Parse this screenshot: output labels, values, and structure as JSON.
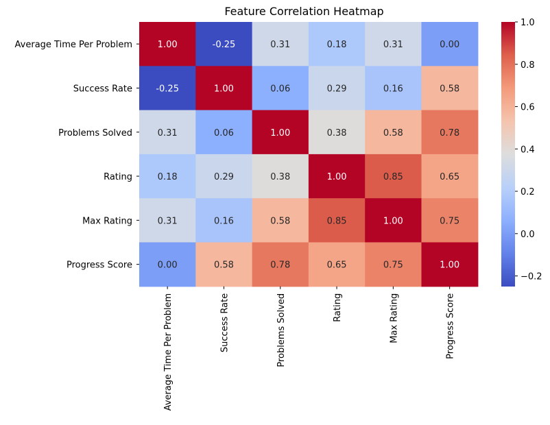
{
  "chart_data": {
    "type": "heatmap",
    "title": "Feature Correlation Heatmap",
    "xlabel": "",
    "ylabel": "",
    "labels": [
      "Average Time Per Problem",
      "Success Rate",
      "Problems Solved",
      "Rating",
      "Max Rating",
      "Progress Score"
    ],
    "values": [
      [
        1.0,
        -0.25,
        0.31,
        0.18,
        0.31,
        0.0
      ],
      [
        -0.25,
        1.0,
        0.06,
        0.29,
        0.16,
        0.58
      ],
      [
        0.31,
        0.06,
        1.0,
        0.38,
        0.58,
        0.78
      ],
      [
        0.18,
        0.29,
        0.38,
        1.0,
        0.85,
        0.65
      ],
      [
        0.31,
        0.16,
        0.58,
        0.85,
        1.0,
        0.75
      ],
      [
        0.0,
        0.58,
        0.78,
        0.65,
        0.75,
        1.0
      ]
    ],
    "cell_labels": [
      [
        "1.00",
        "-0.25",
        "0.31",
        "0.18",
        "0.31",
        "0.00"
      ],
      [
        "-0.25",
        "1.00",
        "0.06",
        "0.29",
        "0.16",
        "0.58"
      ],
      [
        "0.31",
        "0.06",
        "1.00",
        "0.38",
        "0.58",
        "0.78"
      ],
      [
        "0.18",
        "0.29",
        "0.38",
        "1.00",
        "0.85",
        "0.65"
      ],
      [
        "0.31",
        "0.16",
        "0.58",
        "0.85",
        "1.00",
        "0.75"
      ],
      [
        "0.00",
        "0.58",
        "0.78",
        "0.65",
        "0.75",
        "1.00"
      ]
    ],
    "colormap": "coolwarm",
    "vmin": -0.25,
    "vmax": 1.0,
    "colorbar": {
      "ticks": [
        -0.2,
        0.0,
        0.2,
        0.4,
        0.6,
        0.8,
        1.0
      ],
      "tick_labels": [
        "−0.2",
        "0.0",
        "0.2",
        "0.4",
        "0.6",
        "0.8",
        "1.0"
      ]
    },
    "annot_color_dark": "#262626",
    "annot_color_light": "#ffffff"
  }
}
